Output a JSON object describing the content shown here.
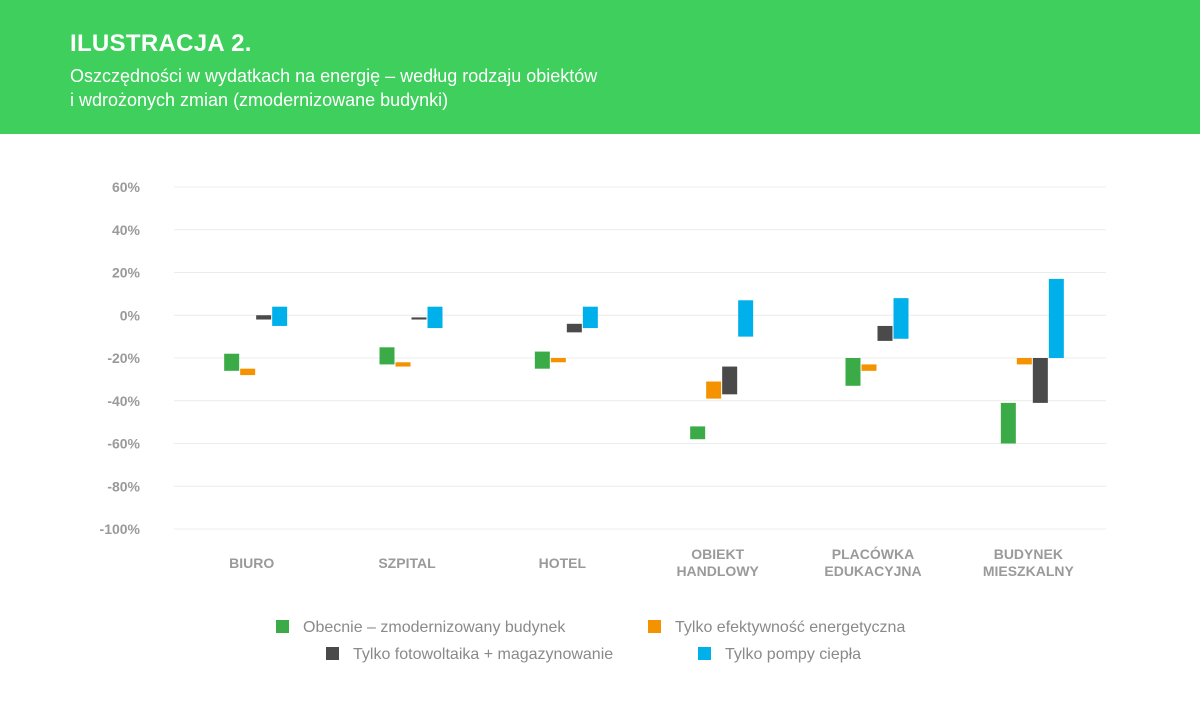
{
  "header": {
    "title": "ILUSTRACJA 2.",
    "subtitle_line1": "Oszczędności w wydatkach na energię – według rodzaju obiektów",
    "subtitle_line2": "i wdrożonych zmian (zmodernizowane budynki)"
  },
  "colors": {
    "header_bg": "#3ecf5c",
    "series": [
      "#3bab47",
      "#f59200",
      "#4a4a4a",
      "#00b0ea"
    ]
  },
  "chart_data": {
    "type": "bar",
    "subtype": "floating-range",
    "ylim": [
      -100,
      60
    ],
    "yticks": [
      "60%",
      "40%",
      "20%",
      "0%",
      "-20%",
      "-40%",
      "-60%",
      "-80%",
      "-100%"
    ],
    "ytick_values": [
      60,
      40,
      20,
      0,
      -20,
      -40,
      -60,
      -80,
      -100
    ],
    "grid": true,
    "legend_position": "bottom",
    "categories": [
      [
        "BIURO"
      ],
      [
        "SZPITAL"
      ],
      [
        "HOTEL"
      ],
      [
        "OBIEKT",
        "HANDLOWY"
      ],
      [
        "PLACÓWKA",
        "EDUKACYJNA"
      ],
      [
        "BUDYNEK",
        "MIESZKALNY"
      ]
    ],
    "series": [
      {
        "name": "Obecnie – zmodernizowany budynek",
        "ranges": [
          [
            -26,
            -18
          ],
          [
            -23,
            -15
          ],
          [
            -25,
            -17
          ],
          [
            -58,
            -52
          ],
          [
            -33,
            -20
          ],
          [
            -60,
            -41
          ]
        ]
      },
      {
        "name": "Tylko efektywność energetyczna",
        "ranges": [
          [
            -28,
            -25
          ],
          [
            -24,
            -22
          ],
          [
            -22,
            -20
          ],
          [
            -39,
            -31
          ],
          [
            -26,
            -23
          ],
          [
            -23,
            -20
          ]
        ]
      },
      {
        "name": "Tylko fotowoltaika + magazynowanie",
        "ranges": [
          [
            -2,
            0
          ],
          [
            -2,
            -1
          ],
          [
            -8,
            -4
          ],
          [
            -37,
            -24
          ],
          [
            -12,
            -5
          ],
          [
            -41,
            -20
          ]
        ]
      },
      {
        "name": "Tylko pompy ciepła",
        "ranges": [
          [
            -5,
            4
          ],
          [
            -6,
            4
          ],
          [
            -6,
            4
          ],
          [
            -10,
            7
          ],
          [
            -11,
            8
          ],
          [
            -20,
            17
          ]
        ]
      }
    ]
  },
  "legend": [
    {
      "label": "Obecnie – zmodernizowany budynek"
    },
    {
      "label": "Tylko efektywność energetyczna"
    },
    {
      "label": "Tylko fotowoltaika + magazynowanie"
    },
    {
      "label": "Tylko pompy ciepła"
    }
  ]
}
